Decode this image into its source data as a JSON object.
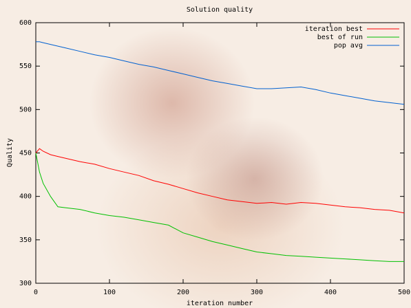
{
  "chart_data": {
    "type": "line",
    "title": "Solution quality",
    "x_label": "iteration number",
    "y_label": "Quality",
    "x": [
      0,
      5,
      10,
      20,
      30,
      40,
      60,
      80,
      100,
      120,
      140,
      160,
      180,
      200,
      220,
      240,
      260,
      280,
      300,
      320,
      340,
      360,
      380,
      400,
      420,
      440,
      460,
      480,
      500
    ],
    "series": [
      {
        "name": "iteration best",
        "color": "#ff0000",
        "values": [
          450,
          455,
          452,
          448,
          446,
          444,
          440,
          437,
          432,
          428,
          424,
          418,
          414,
          409,
          404,
          400,
          396,
          394,
          392,
          393,
          391,
          393,
          392,
          390,
          388,
          387,
          385,
          384,
          381
        ]
      },
      {
        "name": "best of run",
        "color": "#00c000",
        "values": [
          450,
          428,
          415,
          400,
          388,
          387,
          385,
          381,
          378,
          376,
          373,
          370,
          367,
          358,
          353,
          348,
          344,
          340,
          336,
          334,
          332,
          331,
          330,
          329,
          328,
          327,
          326,
          325,
          325
        ]
      },
      {
        "name": "pop avg",
        "color": "#0060d0",
        "values": [
          578,
          578,
          577,
          575,
          573,
          571,
          567,
          563,
          560,
          556,
          552,
          549,
          545,
          541,
          537,
          533,
          530,
          527,
          524,
          524,
          525,
          526,
          523,
          519,
          516,
          513,
          510,
          508,
          506
        ]
      }
    ],
    "xlim": [
      0,
      500
    ],
    "xticks": [
      0,
      100,
      200,
      300,
      400,
      500
    ],
    "ylim": [
      300,
      600
    ],
    "yticks": [
      300,
      350,
      400,
      450,
      500,
      550,
      600
    ],
    "legend": "upper right"
  }
}
